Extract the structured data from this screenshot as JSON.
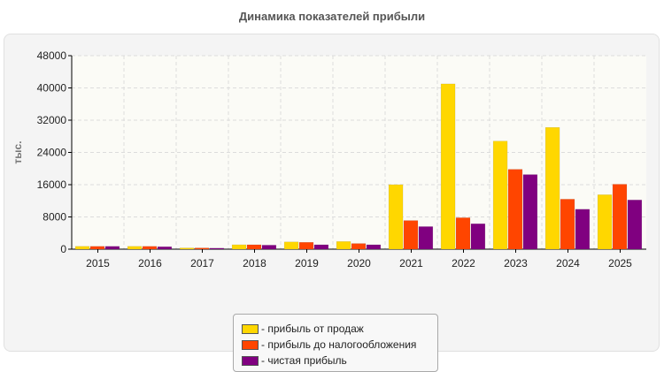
{
  "chart_data": {
    "type": "bar",
    "title": "Динамика показателей прибыли",
    "ylabel": "тыс.",
    "xlabel": "",
    "categories": [
      "2015",
      "2016",
      "2017",
      "2018",
      "2019",
      "2020",
      "2021",
      "2022",
      "2023",
      "2024",
      "2025"
    ],
    "ylim": [
      0,
      48000
    ],
    "yticks": [
      0,
      8000,
      16000,
      24000,
      32000,
      40000,
      48000
    ],
    "grid": true,
    "legend_position": "bottom",
    "series": [
      {
        "name": "- прибыль от продаж",
        "color": "#FFD700",
        "values": [
          700,
          700,
          300,
          1100,
          1800,
          1900,
          16000,
          41000,
          26800,
          30200,
          13500
        ]
      },
      {
        "name": "- прибыль до налогообложения",
        "color": "#FF4500",
        "values": [
          700,
          700,
          300,
          1100,
          1700,
          1400,
          7100,
          7800,
          19800,
          12400,
          16100
        ]
      },
      {
        "name": "- чистая прибыль",
        "color": "#800080",
        "values": [
          700,
          600,
          250,
          1000,
          1100,
          1100,
          5600,
          6300,
          18500,
          9900,
          12200
        ]
      }
    ]
  }
}
